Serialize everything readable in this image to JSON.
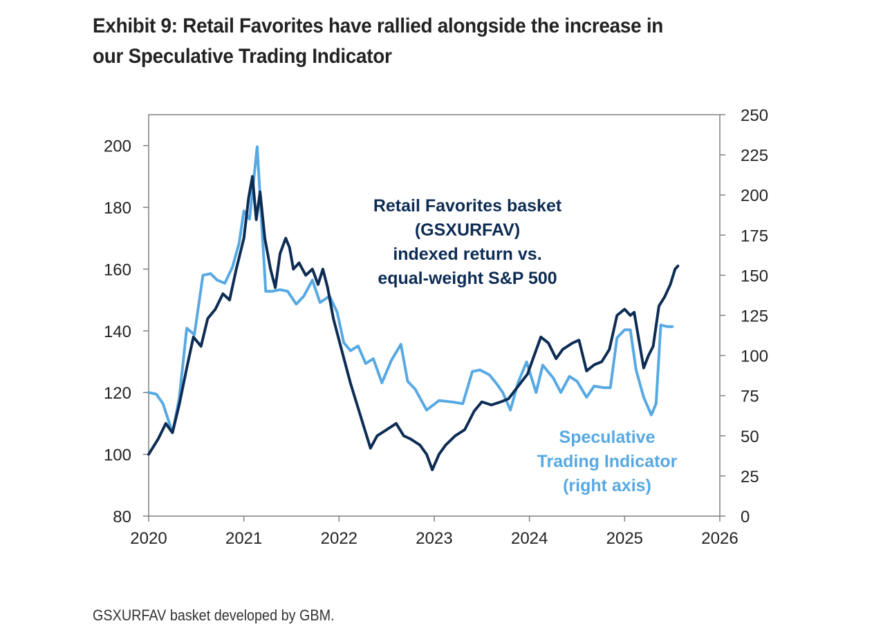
{
  "header": {
    "title_line1": "Exhibit 9: Retail Favorites have rallied alongside the increase in",
    "title_line2": "our Speculative Trading Indicator"
  },
  "footnote": "GSXURFAV basket developed by GBM.",
  "chart_data": {
    "type": "line",
    "x_axis": {
      "min": 2020,
      "max": 2026,
      "ticks": [
        "2020",
        "2021",
        "2022",
        "2023",
        "2024",
        "2025",
        "2026"
      ]
    },
    "y_left": {
      "min": 80,
      "max": 210,
      "ticks": [
        "80",
        "100",
        "120",
        "140",
        "160",
        "180",
        "200"
      ]
    },
    "y_right": {
      "min": 0,
      "max": 250,
      "ticks": [
        "0",
        "25",
        "50",
        "75",
        "100",
        "125",
        "150",
        "175",
        "200",
        "225",
        "250"
      ]
    },
    "grid": false,
    "colors": {
      "retail": "#0d2c54",
      "speculative": "#57a9e3",
      "axis": "#7f7f7f"
    },
    "annotations": {
      "retail": [
        "Retail Favorites basket",
        "(GSXURFAV)",
        "indexed return vs.",
        "equal-weight S&P 500"
      ],
      "speculative": [
        "Speculative",
        "Trading Indicator",
        "(right axis)"
      ]
    },
    "series": [
      {
        "key": "retail",
        "axis": "left",
        "points": [
          [
            2020.0,
            100
          ],
          [
            2020.1,
            105
          ],
          [
            2020.18,
            110
          ],
          [
            2020.25,
            107
          ],
          [
            2020.32,
            116
          ],
          [
            2020.4,
            128
          ],
          [
            2020.47,
            138
          ],
          [
            2020.55,
            135
          ],
          [
            2020.62,
            144
          ],
          [
            2020.7,
            147
          ],
          [
            2020.78,
            152
          ],
          [
            2020.85,
            150
          ],
          [
            2020.92,
            160
          ],
          [
            2021.0,
            170
          ],
          [
            2021.05,
            183
          ],
          [
            2021.09,
            190
          ],
          [
            2021.13,
            176
          ],
          [
            2021.17,
            185
          ],
          [
            2021.22,
            170
          ],
          [
            2021.28,
            160
          ],
          [
            2021.33,
            154
          ],
          [
            2021.38,
            165
          ],
          [
            2021.44,
            170
          ],
          [
            2021.48,
            167
          ],
          [
            2021.52,
            160
          ],
          [
            2021.58,
            162
          ],
          [
            2021.65,
            158
          ],
          [
            2021.72,
            160
          ],
          [
            2021.78,
            155
          ],
          [
            2021.83,
            160
          ],
          [
            2021.88,
            154
          ],
          [
            2021.94,
            144
          ],
          [
            2022.0,
            137
          ],
          [
            2022.06,
            130
          ],
          [
            2022.12,
            123
          ],
          [
            2022.2,
            115
          ],
          [
            2022.27,
            108
          ],
          [
            2022.33,
            102
          ],
          [
            2022.4,
            106
          ],
          [
            2022.5,
            108
          ],
          [
            2022.6,
            110
          ],
          [
            2022.68,
            106
          ],
          [
            2022.75,
            105
          ],
          [
            2022.85,
            103
          ],
          [
            2022.92,
            100
          ],
          [
            2022.98,
            95
          ],
          [
            2023.05,
            100
          ],
          [
            2023.12,
            103
          ],
          [
            2023.22,
            106
          ],
          [
            2023.32,
            108
          ],
          [
            2023.42,
            114
          ],
          [
            2023.5,
            117
          ],
          [
            2023.6,
            116
          ],
          [
            2023.7,
            117
          ],
          [
            2023.78,
            118
          ],
          [
            2023.88,
            122
          ],
          [
            2023.98,
            126
          ],
          [
            2024.05,
            132
          ],
          [
            2024.12,
            138
          ],
          [
            2024.2,
            136
          ],
          [
            2024.28,
            131
          ],
          [
            2024.35,
            134
          ],
          [
            2024.45,
            136
          ],
          [
            2024.52,
            137
          ],
          [
            2024.6,
            127
          ],
          [
            2024.68,
            129
          ],
          [
            2024.76,
            130
          ],
          [
            2024.84,
            134
          ],
          [
            2024.92,
            145
          ],
          [
            2025.0,
            147
          ],
          [
            2025.06,
            145
          ],
          [
            2025.1,
            146
          ],
          [
            2025.15,
            137
          ],
          [
            2025.2,
            128
          ],
          [
            2025.25,
            132
          ],
          [
            2025.3,
            135
          ],
          [
            2025.36,
            148
          ],
          [
            2025.42,
            151
          ],
          [
            2025.48,
            155
          ],
          [
            2025.53,
            160
          ],
          [
            2025.56,
            161
          ]
        ]
      },
      {
        "key": "speculative",
        "axis": "right",
        "points": [
          [
            2020.0,
            77
          ],
          [
            2020.08,
            76
          ],
          [
            2020.15,
            70
          ],
          [
            2020.25,
            52
          ],
          [
            2020.32,
            73
          ],
          [
            2020.4,
            117
          ],
          [
            2020.48,
            113
          ],
          [
            2020.57,
            150
          ],
          [
            2020.65,
            151
          ],
          [
            2020.72,
            147
          ],
          [
            2020.8,
            145
          ],
          [
            2020.88,
            155
          ],
          [
            2020.95,
            170
          ],
          [
            2021.0,
            190
          ],
          [
            2021.06,
            185
          ],
          [
            2021.14,
            230
          ],
          [
            2021.23,
            140
          ],
          [
            2021.3,
            140
          ],
          [
            2021.38,
            141
          ],
          [
            2021.46,
            140
          ],
          [
            2021.55,
            132
          ],
          [
            2021.63,
            137
          ],
          [
            2021.72,
            147
          ],
          [
            2021.8,
            133
          ],
          [
            2021.9,
            137
          ],
          [
            2021.98,
            127
          ],
          [
            2022.05,
            108
          ],
          [
            2022.12,
            103
          ],
          [
            2022.2,
            106
          ],
          [
            2022.28,
            95
          ],
          [
            2022.36,
            98
          ],
          [
            2022.45,
            83
          ],
          [
            2022.55,
            97
          ],
          [
            2022.65,
            107
          ],
          [
            2022.72,
            84
          ],
          [
            2022.8,
            79
          ],
          [
            2022.92,
            66
          ],
          [
            2023.05,
            72
          ],
          [
            2023.2,
            71
          ],
          [
            2023.3,
            70
          ],
          [
            2023.4,
            90
          ],
          [
            2023.48,
            91
          ],
          [
            2023.58,
            88
          ],
          [
            2023.66,
            82
          ],
          [
            2023.72,
            77
          ],
          [
            2023.8,
            66
          ],
          [
            2023.88,
            83
          ],
          [
            2023.97,
            96
          ],
          [
            2024.07,
            77
          ],
          [
            2024.14,
            94
          ],
          [
            2024.25,
            86
          ],
          [
            2024.33,
            77
          ],
          [
            2024.42,
            87
          ],
          [
            2024.5,
            84
          ],
          [
            2024.6,
            74
          ],
          [
            2024.68,
            81
          ],
          [
            2024.78,
            80
          ],
          [
            2024.85,
            80
          ],
          [
            2024.92,
            111
          ],
          [
            2025.0,
            116
          ],
          [
            2025.06,
            116
          ],
          [
            2025.12,
            91
          ],
          [
            2025.2,
            74
          ],
          [
            2025.28,
            63
          ],
          [
            2025.33,
            70
          ],
          [
            2025.38,
            119
          ],
          [
            2025.45,
            118
          ],
          [
            2025.5,
            118
          ]
        ]
      }
    ]
  }
}
